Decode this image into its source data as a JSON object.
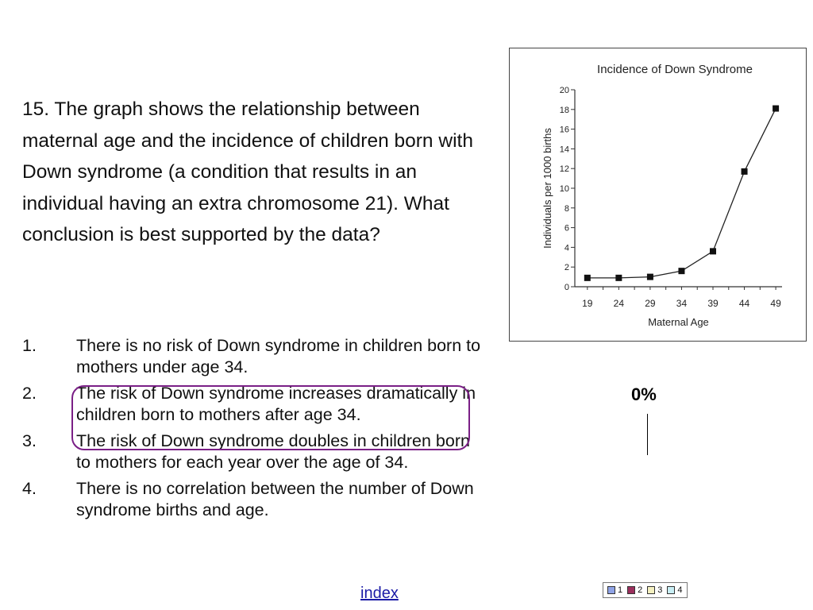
{
  "question": {
    "text": "15. The graph shows the relationship between maternal age and the incidence of children born with Down syndrome (a condition  that results in an individual having an extra chromosome 21). What conclusion is best supported by the data?"
  },
  "answers": [
    {
      "num": "1.",
      "text": "There is no risk of Down syndrome in children born to mothers under age 34."
    },
    {
      "num": "2.",
      "text": "The risk of Down syndrome increases dramatically in children born to mothers after age 34."
    },
    {
      "num": "3.",
      "text": "The risk of Down syndrome doubles in children born to mothers for each year over the age of 34."
    },
    {
      "num": "4.",
      "text": "There is no correlation between the number of Down syndrome births and age."
    }
  ],
  "response": {
    "percent": "0%"
  },
  "nav": {
    "index_label": "index"
  },
  "legend": [
    {
      "label": "1",
      "color": "#8fa3e6"
    },
    {
      "label": "2",
      "color": "#9b2f5d"
    },
    {
      "label": "3",
      "color": "#f4f0c0"
    },
    {
      "label": "4",
      "color": "#c8eef4"
    }
  ],
  "chart_data": {
    "type": "line",
    "title": "Incidence of Down Syndrome",
    "xlabel": "Maternal Age",
    "ylabel": "Individuals per 1000 births",
    "x": [
      19,
      24,
      29,
      34,
      39,
      44,
      49
    ],
    "series": [
      {
        "values": [
          0.9,
          0.9,
          1.0,
          1.6,
          3.6,
          11.7,
          18.1
        ]
      }
    ],
    "ylim": [
      0,
      20
    ],
    "yticks": [
      0,
      2,
      4,
      6,
      8,
      10,
      12,
      14,
      16,
      18,
      20
    ],
    "grid": false
  }
}
